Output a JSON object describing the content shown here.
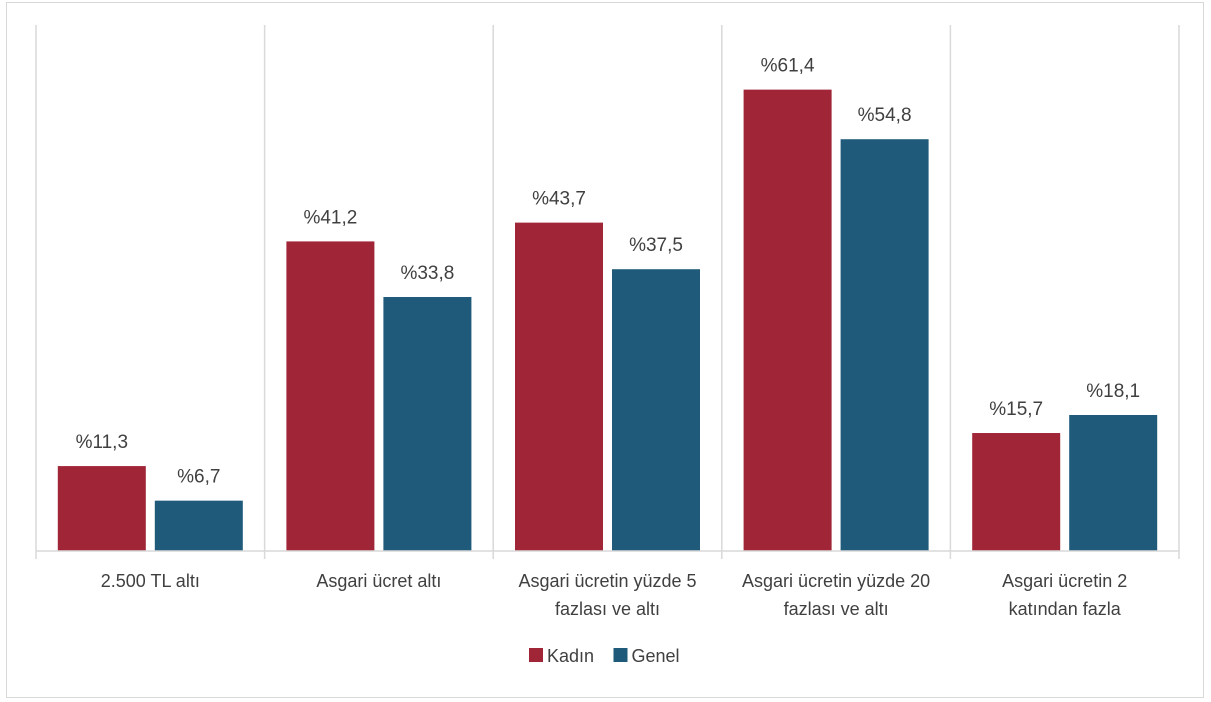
{
  "chart_data": {
    "type": "bar",
    "title": "",
    "xlabel": "",
    "ylabel": "",
    "ylim": [
      0,
      70
    ],
    "grid": false,
    "legend_position": "bottom",
    "categories": [
      [
        "2.500 TL altı"
      ],
      [
        "Asgari ücret altı"
      ],
      [
        "Asgari ücretin yüzde 5",
        "fazlası ve altı"
      ],
      [
        "Asgari ücretin yüzde 20",
        "fazlası ve altı"
      ],
      [
        "Asgari ücretin 2",
        "katından fazla"
      ]
    ],
    "series": [
      {
        "name": "Kadın",
        "color": "#a02537",
        "values": [
          11.3,
          41.2,
          43.7,
          61.4,
          15.7
        ],
        "labels": [
          "%11,3",
          "%41,2",
          "%43,7",
          "%61,4",
          "%15,7"
        ]
      },
      {
        "name": "Genel",
        "color": "#1f5a7a",
        "values": [
          6.7,
          33.8,
          37.5,
          54.8,
          18.1
        ],
        "labels": [
          "%6,7",
          "%33,8",
          "%37,5",
          "%54,8",
          "%18,1"
        ]
      }
    ]
  }
}
